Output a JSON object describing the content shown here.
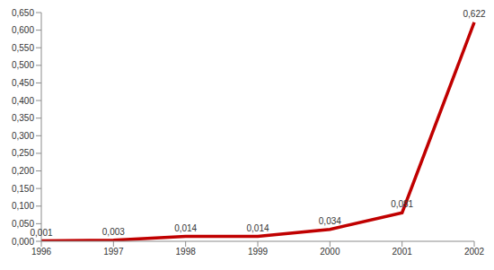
{
  "chart_data": {
    "type": "line",
    "categories": [
      "1996",
      "1997",
      "1998",
      "1999",
      "2000",
      "2001",
      "2002"
    ],
    "values": [
      0.001,
      0.003,
      0.014,
      0.014,
      0.034,
      0.081,
      0.622
    ],
    "value_labels": [
      "0,001",
      "0,003",
      "0,014",
      "0,014",
      "0,034",
      "0,081",
      "0,622"
    ],
    "color": "#c00000",
    "ylim": [
      0,
      0.65
    ],
    "yticks": [
      {
        "value": 0,
        "label": "0,000"
      },
      {
        "value": 0.05,
        "label": "0,050"
      },
      {
        "value": 0.1,
        "label": "0,100"
      },
      {
        "value": 0.15,
        "label": "0,150"
      },
      {
        "value": 0.2,
        "label": "0,200"
      },
      {
        "value": 0.25,
        "label": "0,250"
      },
      {
        "value": 0.3,
        "label": "0,300"
      },
      {
        "value": 0.35,
        "label": "0,350"
      },
      {
        "value": 0.4,
        "label": "0,400"
      },
      {
        "value": 0.45,
        "label": "0,450"
      },
      {
        "value": 0.5,
        "label": "0,500"
      },
      {
        "value": 0.55,
        "label": "0,550"
      },
      {
        "value": 0.6,
        "label": "0,600"
      },
      {
        "value": 0.65,
        "label": "0,650"
      }
    ],
    "grid": false,
    "data_labels": true,
    "marker": "none"
  }
}
